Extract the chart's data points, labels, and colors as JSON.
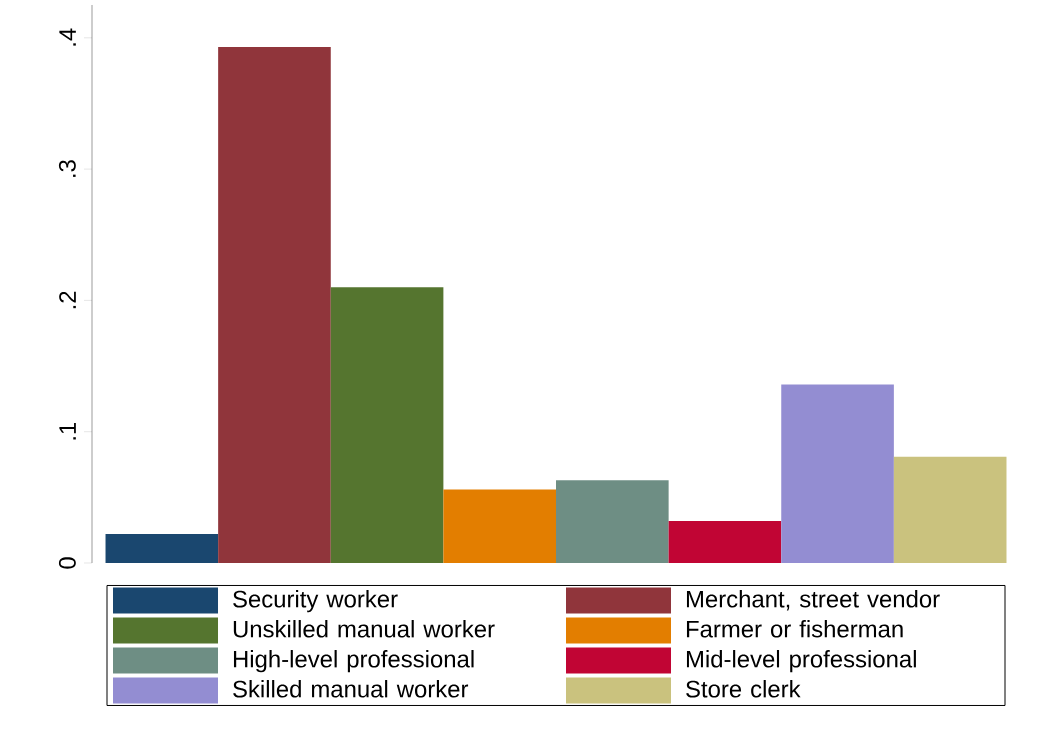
{
  "chart_data": {
    "type": "bar",
    "categories": [
      null
    ],
    "series": [
      {
        "name": "Security worker",
        "color": "#1a476f",
        "values": [
          0.022
        ]
      },
      {
        "name": "Merchant, street vendor",
        "color": "#90353b",
        "values": [
          0.393
        ]
      },
      {
        "name": "Unskilled manual worker",
        "color": "#55752f",
        "values": [
          0.21
        ]
      },
      {
        "name": "Farmer or fisherman",
        "color": "#e37e00",
        "values": [
          0.056
        ]
      },
      {
        "name": "High-level professional",
        "color": "#6e8e84",
        "values": [
          0.063
        ]
      },
      {
        "name": "Mid-level professional",
        "color": "#c10534",
        "values": [
          0.032
        ]
      },
      {
        "name": "Skilled manual worker",
        "color": "#938dd2",
        "values": [
          0.136
        ]
      },
      {
        "name": "Store clerk",
        "color": "#cac27e",
        "values": [
          0.081
        ]
      }
    ],
    "ylim": [
      0,
      0.425
    ],
    "yticks": [
      0,
      {
        "value": 0.1,
        "label": ".1"
      },
      {
        "value": 0.2,
        "label": ".2"
      },
      {
        "value": 0.3,
        "label": ".3"
      },
      {
        "value": 0.4,
        "label": ".4"
      }
    ],
    "tick_labels": "y",
    "legend": "bottom",
    "grid": false
  }
}
